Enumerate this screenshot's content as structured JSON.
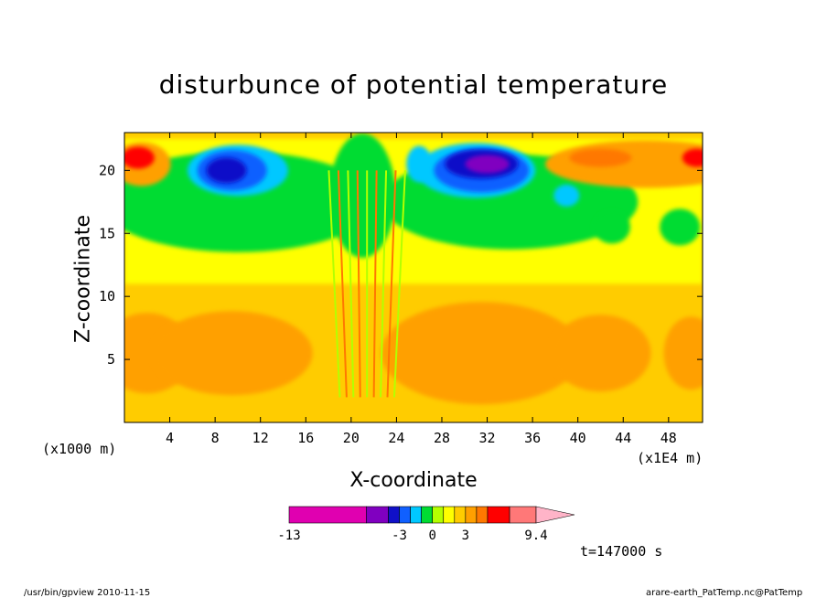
{
  "chart_data": {
    "type": "heatmap",
    "title": "disturbunce of potential temperature",
    "xlabel": "X-coordinate",
    "ylabel": "Z-coordinate",
    "x_scale_label": "(x1000 m)",
    "x_scale_label2": "(x1E4 m)",
    "xlim": [
      0,
      51
    ],
    "ylim": [
      0,
      23
    ],
    "xticks": [
      4,
      8,
      12,
      16,
      20,
      24,
      28,
      32,
      36,
      40,
      44,
      48
    ],
    "yticks": [
      5,
      10,
      15,
      20
    ],
    "colorbar": {
      "levels": [
        -13,
        -3,
        0,
        3,
        9.4
      ],
      "tick_labels": [
        "-13",
        "-3",
        "0",
        "3",
        "9.4"
      ],
      "colors": [
        "#e000b0",
        "#8000c0",
        "#1010c8",
        "#1060ff",
        "#00c8ff",
        "#00dc32",
        "#b4ff00",
        "#ffff00",
        "#ffcc00",
        "#ffa000",
        "#ff7800",
        "#ff0000",
        "#ff7878",
        "#ffb4c8"
      ]
    },
    "field_note": "stable layered background 0 to 3 below z=11; strong negative anomalies near z=18-22 at x~8-12 and x~30-36; positive anomalies near corners at z~21"
  },
  "time_label": "t=147000 s",
  "footer": {
    "left": "/usr/bin/gpview   2010-11-15",
    "right": "arare-earth_PatTemp.nc@PatTemp"
  }
}
